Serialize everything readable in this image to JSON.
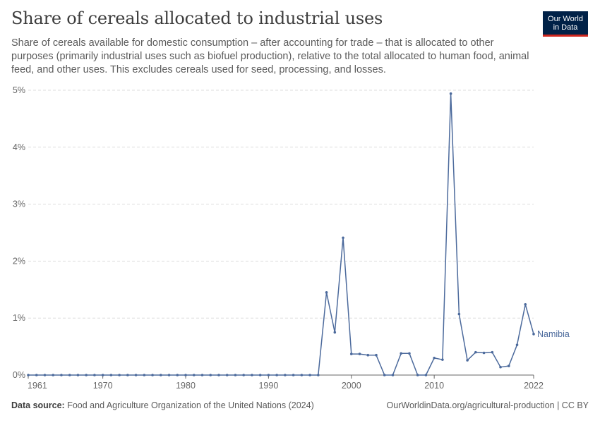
{
  "title": "Share of cereals allocated to industrial uses",
  "subtitle": "Share of cereals available for domestic consumption – after accounting for trade – that is allocated to other purposes (primarily industrial uses such as biofuel production), relative to the total allocated to human food, animal feed, and other uses. This excludes cereals used for seed, processing, and losses.",
  "logo": {
    "line1": "Our World",
    "line2": "in Data"
  },
  "footer": {
    "source_label": "Data source:",
    "source_text": "Food and Agriculture Organization of the United Nations (2024)",
    "right_text": "OurWorldinData.org/agricultural-production | CC BY"
  },
  "colors": {
    "series": "#4c6a9c",
    "grid": "#dddddd",
    "axis": "#666666",
    "tick_text": "#666666"
  },
  "chart_data": {
    "type": "line",
    "ylim": [
      0,
      5
    ],
    "xlim": [
      1961,
      2022
    ],
    "y_ticks": [
      0,
      1,
      2,
      3,
      4,
      5
    ],
    "y_tick_labels": [
      "0%",
      "1%",
      "2%",
      "3%",
      "4%",
      "5%"
    ],
    "x_ticks": [
      1961,
      1970,
      1980,
      1990,
      2000,
      2010,
      2022
    ],
    "x_tick_labels": [
      "1961",
      "1970",
      "1980",
      "1990",
      "2000",
      "2010",
      "2022"
    ],
    "grid": true,
    "series": [
      {
        "name": "Namibia",
        "x": [
          1961,
          1962,
          1963,
          1964,
          1965,
          1966,
          1967,
          1968,
          1969,
          1970,
          1971,
          1972,
          1973,
          1974,
          1975,
          1976,
          1977,
          1978,
          1979,
          1980,
          1981,
          1982,
          1983,
          1984,
          1985,
          1986,
          1987,
          1988,
          1989,
          1990,
          1991,
          1992,
          1993,
          1994,
          1995,
          1996,
          1997,
          1998,
          1999,
          2000,
          2001,
          2002,
          2003,
          2004,
          2005,
          2006,
          2007,
          2008,
          2009,
          2010,
          2011,
          2012,
          2013,
          2014,
          2015,
          2016,
          2017,
          2018,
          2019,
          2020,
          2021,
          2022
        ],
        "values": [
          0,
          0,
          0,
          0,
          0,
          0,
          0,
          0,
          0,
          0,
          0,
          0,
          0,
          0,
          0,
          0,
          0,
          0,
          0,
          0,
          0,
          0,
          0,
          0,
          0,
          0,
          0,
          0,
          0,
          0,
          0,
          0,
          0,
          0,
          0,
          0,
          1.45,
          0.75,
          2.41,
          0.37,
          0.37,
          0.35,
          0.35,
          0,
          0,
          0.38,
          0.38,
          0,
          0,
          0.3,
          0.27,
          4.94,
          1.07,
          0.26,
          0.4,
          0.39,
          0.4,
          0.14,
          0.16,
          0.53,
          1.24,
          0.72
        ]
      }
    ]
  }
}
